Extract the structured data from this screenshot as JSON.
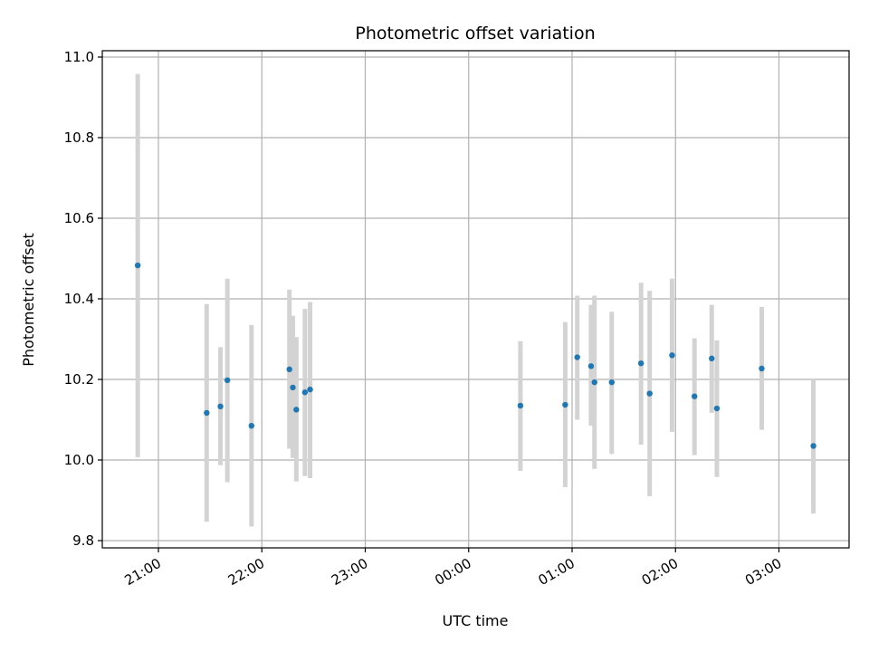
{
  "chart_data": {
    "type": "scatter",
    "title": "Photometric offset variation",
    "xlabel": "UTC time",
    "ylabel": "Photometric offset",
    "x_ticks": [
      "21:00",
      "22:00",
      "23:00",
      "00:00",
      "01:00",
      "02:00",
      "03:00"
    ],
    "y_ticks": [
      "9.8",
      "10.0",
      "10.2",
      "10.4",
      "10.6",
      "10.8",
      "11.0"
    ],
    "grid": true,
    "colors": {
      "points": "#1f77b4",
      "errorbars": "#d3d3d3"
    },
    "points": [
      {
        "t": "20:48",
        "y": 10.483,
        "lo": 10.007,
        "hi": 10.958
      },
      {
        "t": "21:28",
        "y": 10.117,
        "lo": 9.847,
        "hi": 10.387
      },
      {
        "t": "21:36",
        "y": 10.133,
        "lo": 9.987,
        "hi": 10.28
      },
      {
        "t": "21:40",
        "y": 10.198,
        "lo": 9.945,
        "hi": 10.45
      },
      {
        "t": "21:54",
        "y": 10.085,
        "lo": 9.835,
        "hi": 10.335
      },
      {
        "t": "22:16",
        "y": 10.225,
        "lo": 10.028,
        "hi": 10.423
      },
      {
        "t": "22:18",
        "y": 10.18,
        "lo": 10.005,
        "hi": 10.358
      },
      {
        "t": "22:20",
        "y": 10.125,
        "lo": 9.947,
        "hi": 10.305
      },
      {
        "t": "22:25",
        "y": 10.168,
        "lo": 9.96,
        "hi": 10.375
      },
      {
        "t": "22:28",
        "y": 10.175,
        "lo": 9.955,
        "hi": 10.392
      },
      {
        "t": "00:30",
        "y": 10.135,
        "lo": 9.973,
        "hi": 10.295
      },
      {
        "t": "00:56",
        "y": 10.137,
        "lo": 9.933,
        "hi": 10.342
      },
      {
        "t": "01:03",
        "y": 10.255,
        "lo": 10.1,
        "hi": 10.408
      },
      {
        "t": "01:11",
        "y": 10.233,
        "lo": 10.085,
        "hi": 10.385
      },
      {
        "t": "01:13",
        "y": 10.193,
        "lo": 9.978,
        "hi": 10.408
      },
      {
        "t": "01:23",
        "y": 10.193,
        "lo": 10.015,
        "hi": 10.368
      },
      {
        "t": "01:40",
        "y": 10.24,
        "lo": 10.038,
        "hi": 10.44
      },
      {
        "t": "01:45",
        "y": 10.165,
        "lo": 9.91,
        "hi": 10.42
      },
      {
        "t": "01:58",
        "y": 10.26,
        "lo": 10.07,
        "hi": 10.45
      },
      {
        "t": "02:11",
        "y": 10.158,
        "lo": 10.012,
        "hi": 10.302
      },
      {
        "t": "02:21",
        "y": 10.252,
        "lo": 10.117,
        "hi": 10.385
      },
      {
        "t": "02:24",
        "y": 10.128,
        "lo": 9.958,
        "hi": 10.297
      },
      {
        "t": "02:50",
        "y": 10.227,
        "lo": 10.075,
        "hi": 10.38
      },
      {
        "t": "03:20",
        "y": 10.035,
        "lo": 9.867,
        "hi": 10.2
      }
    ]
  }
}
